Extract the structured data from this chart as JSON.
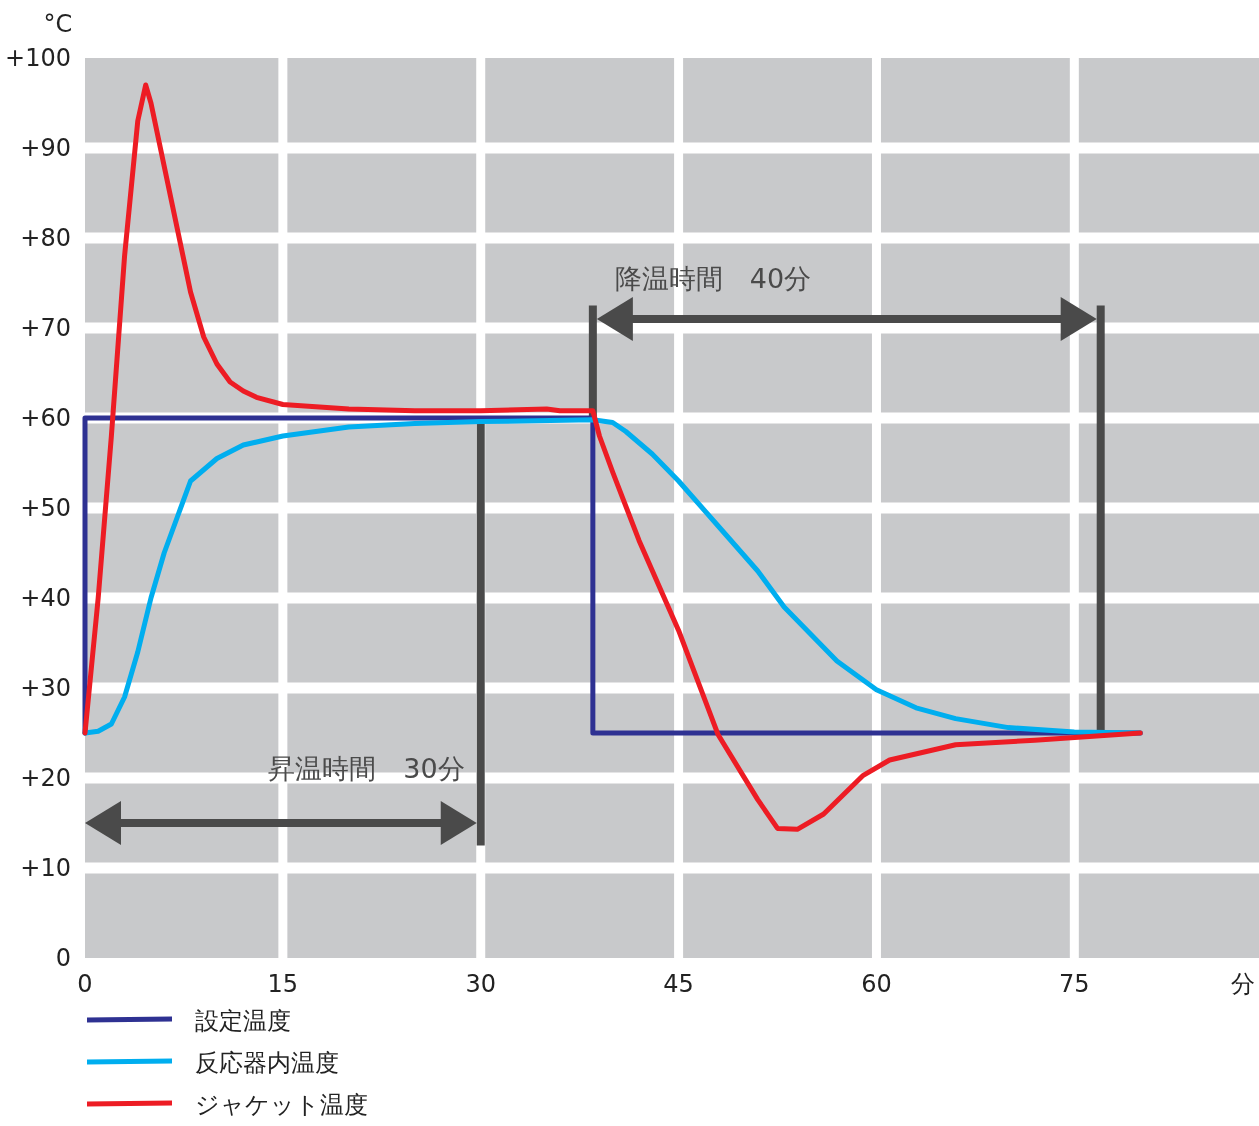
{
  "chart_data": {
    "type": "line",
    "xlabel": "分",
    "ylabel": "°C",
    "xlim": [
      0,
      89
    ],
    "ylim": [
      0,
      100
    ],
    "xticks": [
      0,
      15,
      30,
      45,
      60,
      75
    ],
    "yticks": [
      0,
      {
        "value": 10,
        "label": "+10"
      },
      {
        "value": 20,
        "label": "+20"
      },
      {
        "value": 30,
        "label": "+30"
      },
      {
        "value": 40,
        "label": "+40"
      },
      {
        "value": 50,
        "label": "+50"
      },
      {
        "value": 60,
        "label": "+60"
      },
      {
        "value": 70,
        "label": "+70"
      },
      {
        "value": 80,
        "label": "+80"
      },
      {
        "value": 90,
        "label": "+90"
      },
      {
        "value": 100,
        "label": "+100"
      }
    ],
    "grid": true,
    "legend": "bottom left",
    "marker": "none",
    "line_style": "solid",
    "series": [
      {
        "name": "設定温度",
        "color": "#2e3192",
        "x": [
          0,
          0,
          38.5,
          38.5,
          80
        ],
        "values": [
          25,
          60,
          60,
          25,
          25
        ]
      },
      {
        "name": "反応器内温度",
        "color": "#00aeef",
        "x": [
          0,
          1,
          2,
          3,
          4,
          5,
          6,
          7,
          8,
          10,
          12,
          15,
          20,
          25,
          30,
          38.5,
          40,
          41,
          43,
          45,
          48,
          51,
          53,
          55,
          57,
          60,
          63,
          66,
          70,
          75,
          80
        ],
        "values": [
          25,
          25.2,
          26,
          29,
          34,
          40,
          45,
          49,
          53,
          55.5,
          57,
          58,
          59,
          59.4,
          59.6,
          59.8,
          59.5,
          58.5,
          56,
          53,
          48,
          43,
          39,
          36,
          33,
          29.8,
          27.8,
          26.6,
          25.6,
          25.1,
          25
        ]
      },
      {
        "name": "ジャケット温度",
        "color": "#ed1c24",
        "x": [
          0,
          1,
          2,
          3,
          4,
          4.6,
          5,
          6,
          7,
          8,
          9,
          10,
          11,
          12,
          13,
          15,
          20,
          25,
          30,
          35,
          36,
          38.5,
          39,
          40,
          42,
          45,
          48,
          51,
          52.5,
          54,
          56,
          59,
          61,
          66,
          72,
          80
        ],
        "values": [
          25,
          40,
          58,
          78,
          93,
          97,
          95,
          88,
          81,
          74,
          69,
          66,
          64,
          63,
          62.3,
          61.5,
          61,
          60.8,
          60.8,
          61,
          60.8,
          60.8,
          58,
          54,
          46.4,
          36.4,
          24.8,
          17.6,
          14.4,
          14.3,
          16,
          20.3,
          22,
          23.7,
          24.2,
          25
        ]
      }
    ],
    "ref_lines": [
      {
        "axis": "x",
        "value": 30,
        "label": "昇温時間　30分",
        "color": "#4a4a4a"
      },
      {
        "axis": "x",
        "value": 38.5,
        "label": "降温時間　40分",
        "color": "#4a4a4a"
      },
      {
        "axis": "x",
        "value": 77,
        "color": "#4a4a4a"
      }
    ]
  }
}
